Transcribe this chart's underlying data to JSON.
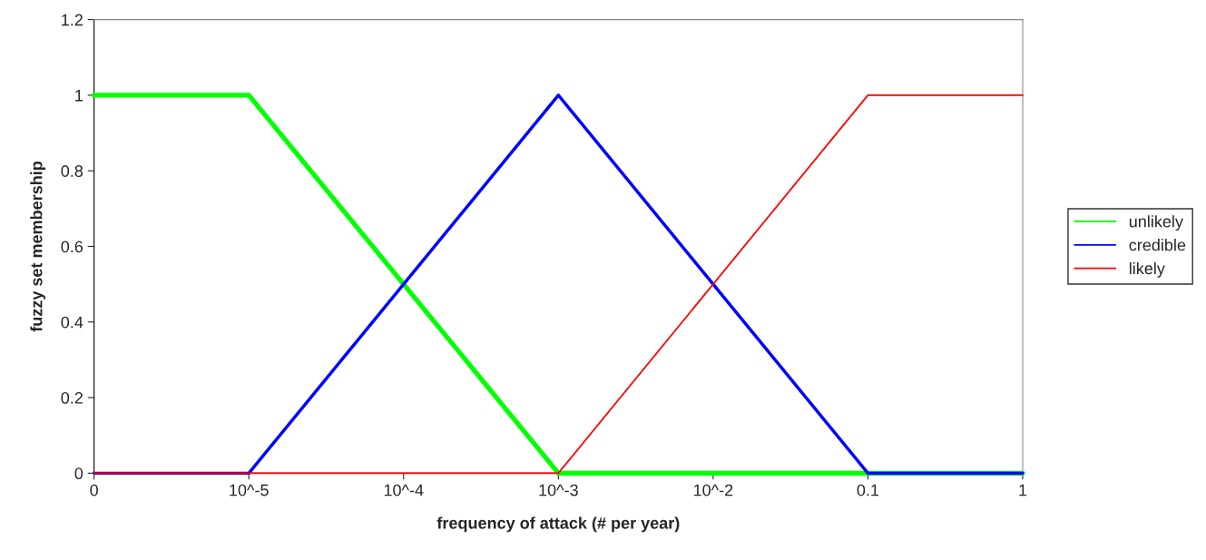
{
  "chart_data": {
    "type": "line",
    "xlabel": "frequency of attack (# per year)",
    "ylabel": "fuzzy set membership",
    "categories": [
      "0",
      "10^-5",
      "10^-4",
      "10^-3",
      "10^-2",
      "0.1",
      "1"
    ],
    "series": [
      {
        "name": "unlikely",
        "color": "#00ff00",
        "values": [
          1,
          1,
          0.5,
          0,
          0,
          0,
          0
        ]
      },
      {
        "name": "credible",
        "color": "#0000ff",
        "values": [
          0,
          0,
          0.5,
          1,
          0.5,
          0,
          0
        ]
      },
      {
        "name": "likely",
        "color": "#ff0000",
        "values": [
          0,
          0,
          0,
          0,
          0.5,
          1,
          1
        ]
      }
    ],
    "ylim": [
      0,
      1.2
    ],
    "yticks": [
      0,
      0.2,
      0.4,
      0.6,
      0.8,
      1,
      1.2
    ],
    "grid": false,
    "legend": "right"
  }
}
